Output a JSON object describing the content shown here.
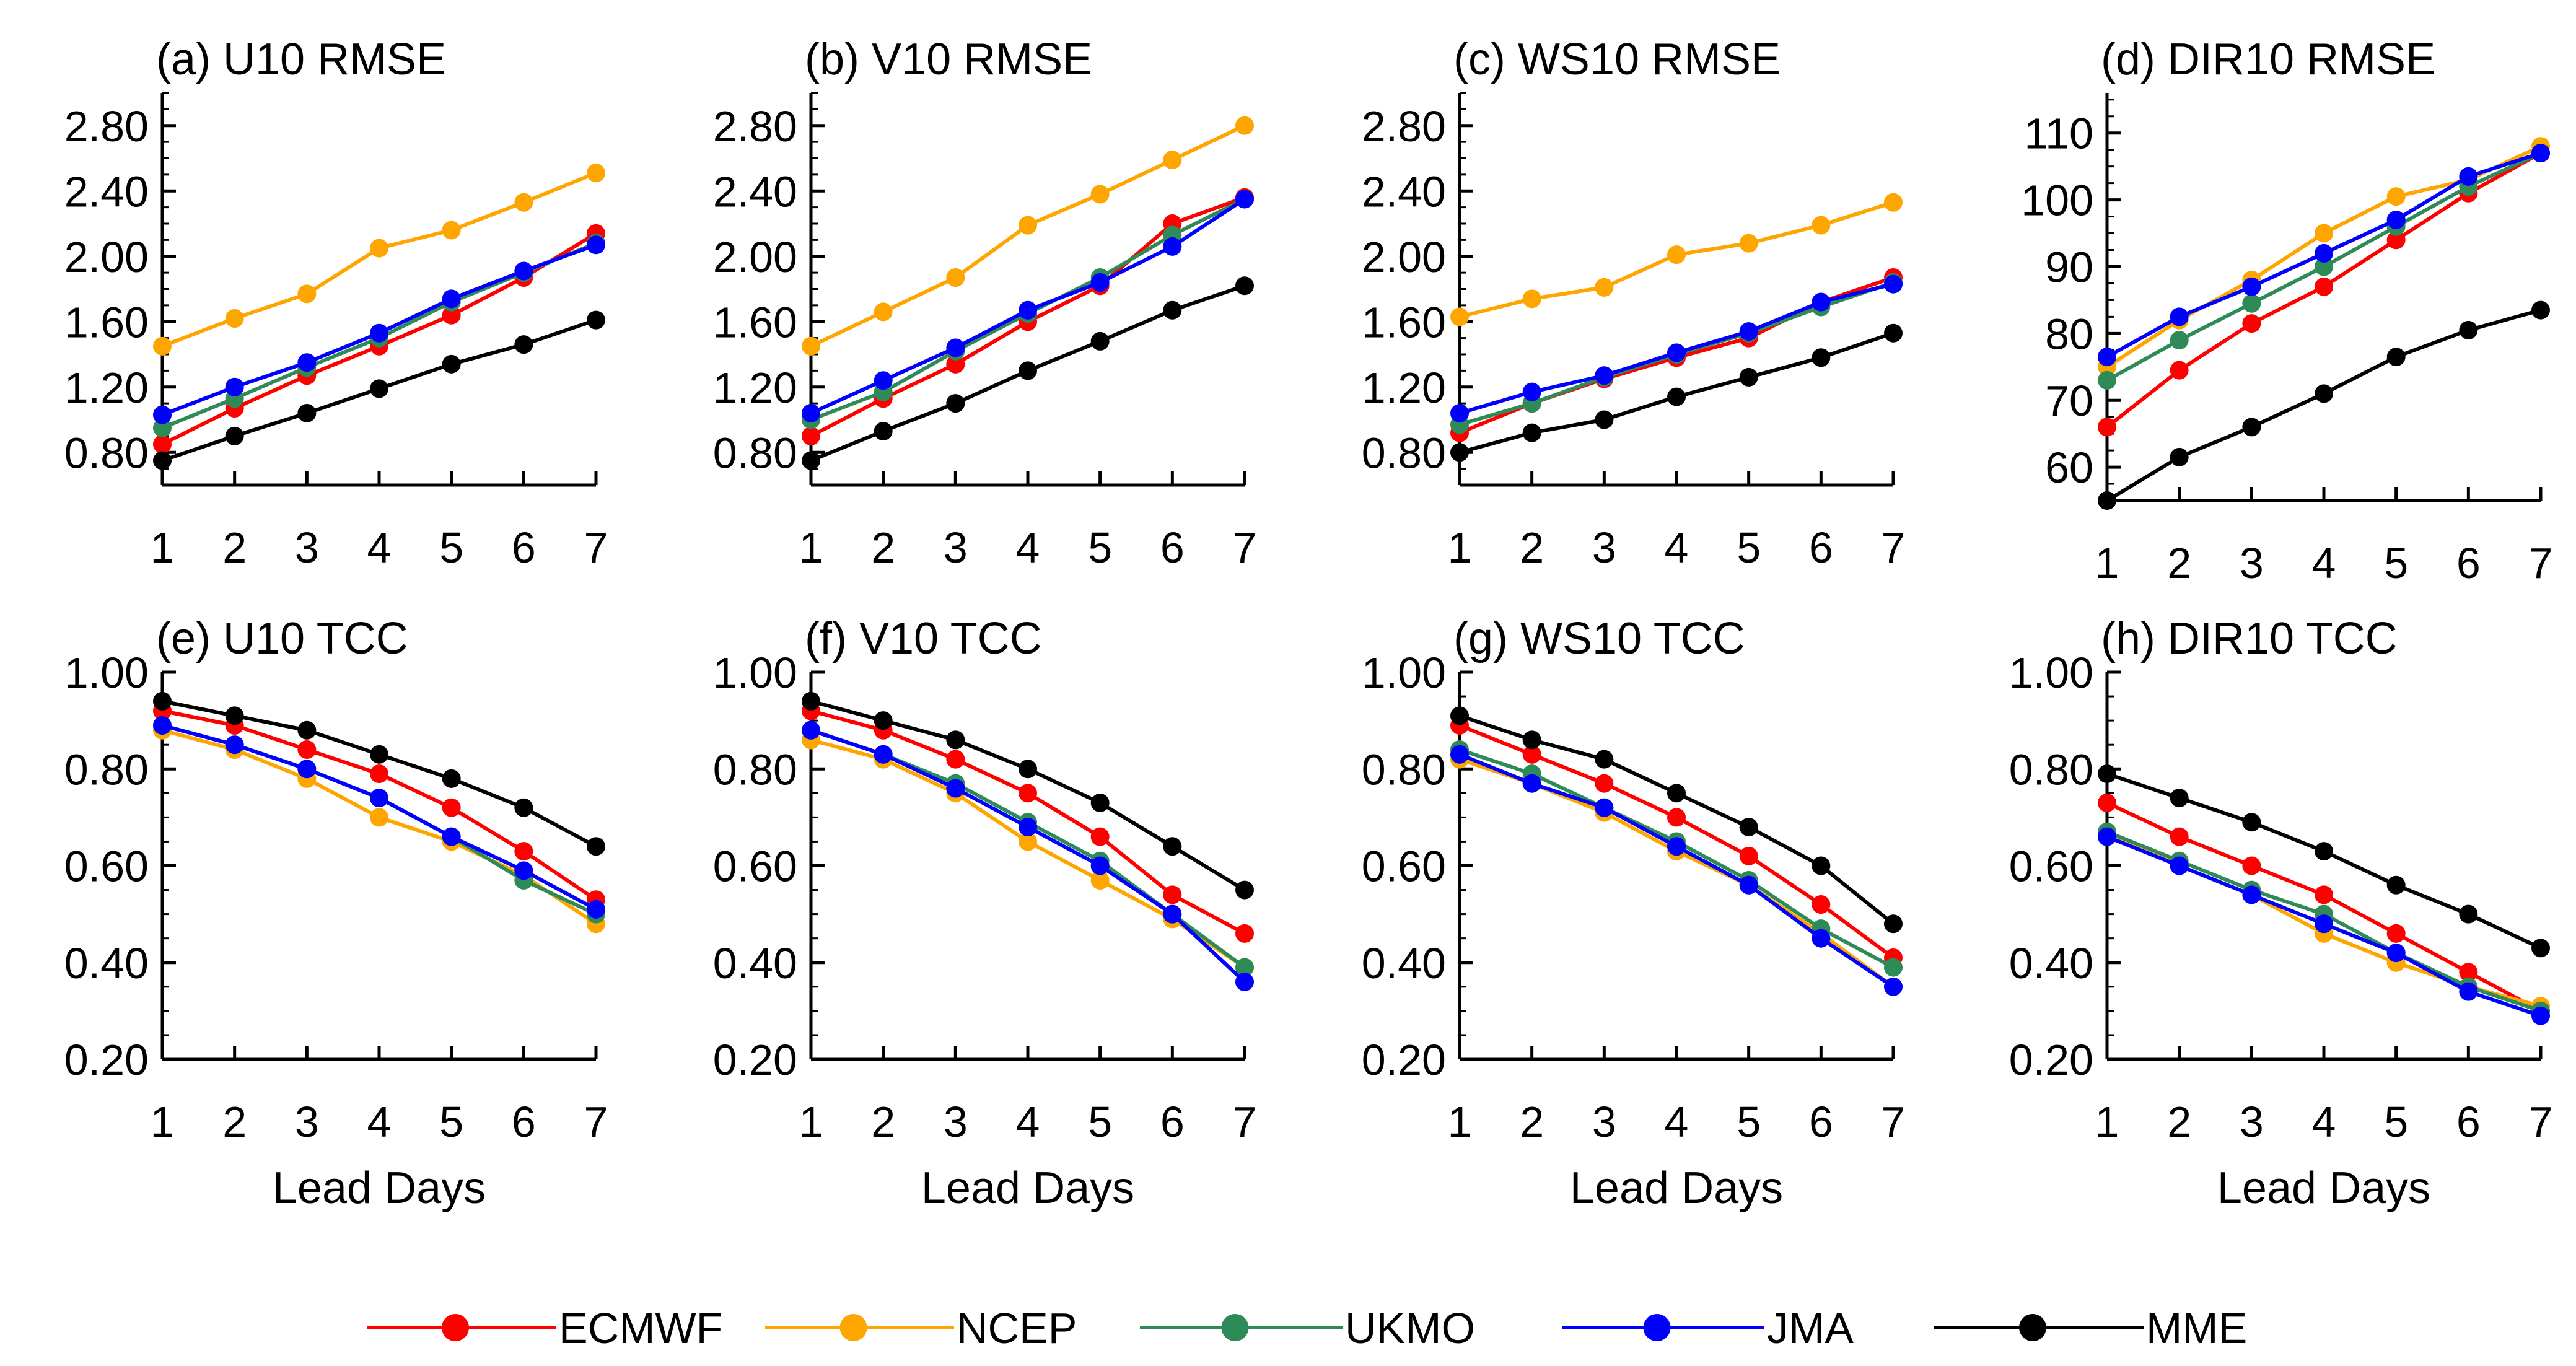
{
  "figure": {
    "legend": [
      {
        "name": "ECMWF",
        "color": "#ff0000"
      },
      {
        "name": "NCEP",
        "color": "#ffa500"
      },
      {
        "name": "UKMO",
        "color": "#2e8b57"
      },
      {
        "name": "JMA",
        "color": "#0000ff"
      },
      {
        "name": "MME",
        "color": "#000000"
      }
    ]
  },
  "chart_data": [
    {
      "type": "line",
      "title": "(a) U10 RMSE",
      "xlabel": "",
      "ylabel": "",
      "x": [
        1,
        2,
        3,
        4,
        5,
        6,
        7
      ],
      "x_ticks": [
        "1",
        "2",
        "3",
        "4",
        "5",
        "6",
        "7"
      ],
      "ylim": [
        0.6,
        3.0
      ],
      "y_ticks": [
        "0.80",
        "1.20",
        "1.60",
        "2.00",
        "2.40",
        "2.80"
      ],
      "series": [
        {
          "name": "ECMWF",
          "color": "#ff0000",
          "values": [
            0.85,
            1.07,
            1.27,
            1.45,
            1.64,
            1.87,
            2.14
          ]
        },
        {
          "name": "NCEP",
          "color": "#ffa500",
          "values": [
            1.45,
            1.62,
            1.77,
            2.05,
            2.16,
            2.33,
            2.51
          ]
        },
        {
          "name": "UKMO",
          "color": "#2e8b57",
          "values": [
            0.95,
            1.13,
            1.32,
            1.5,
            1.72,
            1.9,
            2.08
          ]
        },
        {
          "name": "JMA",
          "color": "#0000ff",
          "values": [
            1.03,
            1.2,
            1.35,
            1.53,
            1.74,
            1.91,
            2.07
          ]
        },
        {
          "name": "MME",
          "color": "#000000",
          "values": [
            0.75,
            0.9,
            1.04,
            1.19,
            1.34,
            1.46,
            1.61
          ]
        }
      ]
    },
    {
      "type": "line",
      "title": "(b) V10 RMSE",
      "xlabel": "",
      "ylabel": "",
      "x": [
        1,
        2,
        3,
        4,
        5,
        6,
        7
      ],
      "x_ticks": [
        "1",
        "2",
        "3",
        "4",
        "5",
        "6",
        "7"
      ],
      "ylim": [
        0.6,
        3.0
      ],
      "y_ticks": [
        "0.80",
        "1.20",
        "1.60",
        "2.00",
        "2.40",
        "2.80"
      ],
      "series": [
        {
          "name": "ECMWF",
          "color": "#ff0000",
          "values": [
            0.9,
            1.13,
            1.34,
            1.6,
            1.82,
            2.2,
            2.36
          ]
        },
        {
          "name": "NCEP",
          "color": "#ffa500",
          "values": [
            1.45,
            1.66,
            1.87,
            2.19,
            2.38,
            2.59,
            2.8
          ]
        },
        {
          "name": "UKMO",
          "color": "#2e8b57",
          "values": [
            1.0,
            1.17,
            1.42,
            1.65,
            1.87,
            2.13,
            2.35
          ]
        },
        {
          "name": "JMA",
          "color": "#0000ff",
          "values": [
            1.04,
            1.24,
            1.44,
            1.67,
            1.84,
            2.06,
            2.35
          ]
        },
        {
          "name": "MME",
          "color": "#000000",
          "values": [
            0.75,
            0.93,
            1.1,
            1.3,
            1.48,
            1.67,
            1.82
          ]
        }
      ]
    },
    {
      "type": "line",
      "title": "(c) WS10 RMSE",
      "xlabel": "",
      "ylabel": "",
      "x": [
        1,
        2,
        3,
        4,
        5,
        6,
        7
      ],
      "x_ticks": [
        "1",
        "2",
        "3",
        "4",
        "5",
        "6",
        "7"
      ],
      "ylim": [
        0.6,
        3.0
      ],
      "y_ticks": [
        "0.80",
        "1.20",
        "1.60",
        "2.00",
        "2.40",
        "2.80"
      ],
      "series": [
        {
          "name": "ECMWF",
          "color": "#ff0000",
          "values": [
            0.92,
            1.1,
            1.25,
            1.38,
            1.5,
            1.72,
            1.87
          ]
        },
        {
          "name": "NCEP",
          "color": "#ffa500",
          "values": [
            1.63,
            1.74,
            1.81,
            2.01,
            2.08,
            2.19,
            2.33
          ]
        },
        {
          "name": "UKMO",
          "color": "#2e8b57",
          "values": [
            0.97,
            1.1,
            1.26,
            1.4,
            1.53,
            1.69,
            1.84
          ]
        },
        {
          "name": "JMA",
          "color": "#0000ff",
          "values": [
            1.04,
            1.17,
            1.27,
            1.41,
            1.54,
            1.72,
            1.83
          ]
        },
        {
          "name": "MME",
          "color": "#000000",
          "values": [
            0.8,
            0.92,
            1.0,
            1.14,
            1.26,
            1.38,
            1.53
          ]
        }
      ]
    },
    {
      "type": "line",
      "title": "(d) DIR10 RMSE",
      "xlabel": "",
      "ylabel": "",
      "x": [
        1,
        2,
        3,
        4,
        5,
        6,
        7
      ],
      "x_ticks": [
        "1",
        "2",
        "3",
        "4",
        "5",
        "6",
        "7"
      ],
      "ylim": [
        55,
        116
      ],
      "y_ticks": [
        "60",
        "70",
        "80",
        "90",
        "100",
        "110"
      ],
      "series": [
        {
          "name": "ECMWF",
          "color": "#ff0000",
          "values": [
            66,
            74.5,
            81.5,
            87,
            94,
            101,
            107
          ]
        },
        {
          "name": "NCEP",
          "color": "#ffa500",
          "values": [
            75,
            82,
            88,
            95,
            100.5,
            103,
            108
          ]
        },
        {
          "name": "UKMO",
          "color": "#2e8b57",
          "values": [
            73,
            79,
            84.5,
            90,
            96,
            102,
            107
          ]
        },
        {
          "name": "JMA",
          "color": "#0000ff",
          "values": [
            76.5,
            82.5,
            87,
            92,
            97,
            103.5,
            107
          ]
        },
        {
          "name": "MME",
          "color": "#000000",
          "values": [
            55,
            61.5,
            66,
            71,
            76.5,
            80.5,
            83.5
          ]
        }
      ]
    },
    {
      "type": "line",
      "title": "(e) U10 TCC",
      "xlabel": "Lead Days",
      "ylabel": "",
      "x": [
        1,
        2,
        3,
        4,
        5,
        6,
        7
      ],
      "x_ticks": [
        "1",
        "2",
        "3",
        "4",
        "5",
        "6",
        "7"
      ],
      "ylim": [
        0.2,
        1.0
      ],
      "y_ticks": [
        "0.20",
        "0.40",
        "0.60",
        "0.80",
        "1.00"
      ],
      "series": [
        {
          "name": "ECMWF",
          "color": "#ff0000",
          "values": [
            0.92,
            0.89,
            0.84,
            0.79,
            0.72,
            0.63,
            0.53
          ]
        },
        {
          "name": "NCEP",
          "color": "#ffa500",
          "values": [
            0.88,
            0.84,
            0.78,
            0.7,
            0.65,
            0.58,
            0.48
          ]
        },
        {
          "name": "UKMO",
          "color": "#2e8b57",
          "values": [
            0.89,
            0.85,
            0.8,
            0.74,
            0.66,
            0.57,
            0.5
          ]
        },
        {
          "name": "JMA",
          "color": "#0000ff",
          "values": [
            0.89,
            0.85,
            0.8,
            0.74,
            0.66,
            0.59,
            0.51
          ]
        },
        {
          "name": "MME",
          "color": "#000000",
          "values": [
            0.94,
            0.91,
            0.88,
            0.83,
            0.78,
            0.72,
            0.64
          ]
        }
      ]
    },
    {
      "type": "line",
      "title": "(f) V10 TCC",
      "xlabel": "Lead Days",
      "ylabel": "",
      "x": [
        1,
        2,
        3,
        4,
        5,
        6,
        7
      ],
      "x_ticks": [
        "1",
        "2",
        "3",
        "4",
        "5",
        "6",
        "7"
      ],
      "ylim": [
        0.2,
        1.0
      ],
      "y_ticks": [
        "0.20",
        "0.40",
        "0.60",
        "0.80",
        "1.00"
      ],
      "series": [
        {
          "name": "ECMWF",
          "color": "#ff0000",
          "values": [
            0.92,
            0.88,
            0.82,
            0.75,
            0.66,
            0.54,
            0.46
          ]
        },
        {
          "name": "NCEP",
          "color": "#ffa500",
          "values": [
            0.86,
            0.82,
            0.75,
            0.65,
            0.57,
            0.49,
            0.39
          ]
        },
        {
          "name": "UKMO",
          "color": "#2e8b57",
          "values": [
            0.88,
            0.83,
            0.77,
            0.69,
            0.61,
            0.5,
            0.39
          ]
        },
        {
          "name": "JMA",
          "color": "#0000ff",
          "values": [
            0.88,
            0.83,
            0.76,
            0.68,
            0.6,
            0.5,
            0.36
          ]
        },
        {
          "name": "MME",
          "color": "#000000",
          "values": [
            0.94,
            0.9,
            0.86,
            0.8,
            0.73,
            0.64,
            0.55
          ]
        }
      ]
    },
    {
      "type": "line",
      "title": "(g) WS10 TCC",
      "xlabel": "Lead Days",
      "ylabel": "",
      "x": [
        1,
        2,
        3,
        4,
        5,
        6,
        7
      ],
      "x_ticks": [
        "1",
        "2",
        "3",
        "4",
        "5",
        "6",
        "7"
      ],
      "ylim": [
        0.2,
        1.0
      ],
      "y_ticks": [
        "0.20",
        "0.40",
        "0.60",
        "0.80",
        "1.00"
      ],
      "series": [
        {
          "name": "ECMWF",
          "color": "#ff0000",
          "values": [
            0.89,
            0.83,
            0.77,
            0.7,
            0.62,
            0.52,
            0.41
          ]
        },
        {
          "name": "NCEP",
          "color": "#ffa500",
          "values": [
            0.82,
            0.77,
            0.71,
            0.63,
            0.56,
            0.46,
            0.35
          ]
        },
        {
          "name": "UKMO",
          "color": "#2e8b57",
          "values": [
            0.84,
            0.79,
            0.72,
            0.65,
            0.57,
            0.47,
            0.39
          ]
        },
        {
          "name": "JMA",
          "color": "#0000ff",
          "values": [
            0.83,
            0.77,
            0.72,
            0.64,
            0.56,
            0.45,
            0.35
          ]
        },
        {
          "name": "MME",
          "color": "#000000",
          "values": [
            0.91,
            0.86,
            0.82,
            0.75,
            0.68,
            0.6,
            0.48
          ]
        }
      ]
    },
    {
      "type": "line",
      "title": "(h) DIR10 TCC",
      "xlabel": "Lead Days",
      "ylabel": "",
      "x": [
        1,
        2,
        3,
        4,
        5,
        6,
        7
      ],
      "x_ticks": [
        "1",
        "2",
        "3",
        "4",
        "5",
        "6",
        "7"
      ],
      "ylim": [
        0.2,
        1.0
      ],
      "y_ticks": [
        "0.20",
        "0.40",
        "0.60",
        "0.80",
        "1.00"
      ],
      "series": [
        {
          "name": "ECMWF",
          "color": "#ff0000",
          "values": [
            0.73,
            0.66,
            0.6,
            0.54,
            0.46,
            0.38,
            0.3
          ]
        },
        {
          "name": "NCEP",
          "color": "#ffa500",
          "values": [
            0.67,
            0.6,
            0.54,
            0.46,
            0.4,
            0.35,
            0.31
          ]
        },
        {
          "name": "UKMO",
          "color": "#2e8b57",
          "values": [
            0.67,
            0.61,
            0.55,
            0.5,
            0.42,
            0.35,
            0.3
          ]
        },
        {
          "name": "JMA",
          "color": "#0000ff",
          "values": [
            0.66,
            0.6,
            0.54,
            0.48,
            0.42,
            0.34,
            0.29
          ]
        },
        {
          "name": "MME",
          "color": "#000000",
          "values": [
            0.79,
            0.74,
            0.69,
            0.63,
            0.56,
            0.5,
            0.43
          ]
        }
      ]
    }
  ]
}
